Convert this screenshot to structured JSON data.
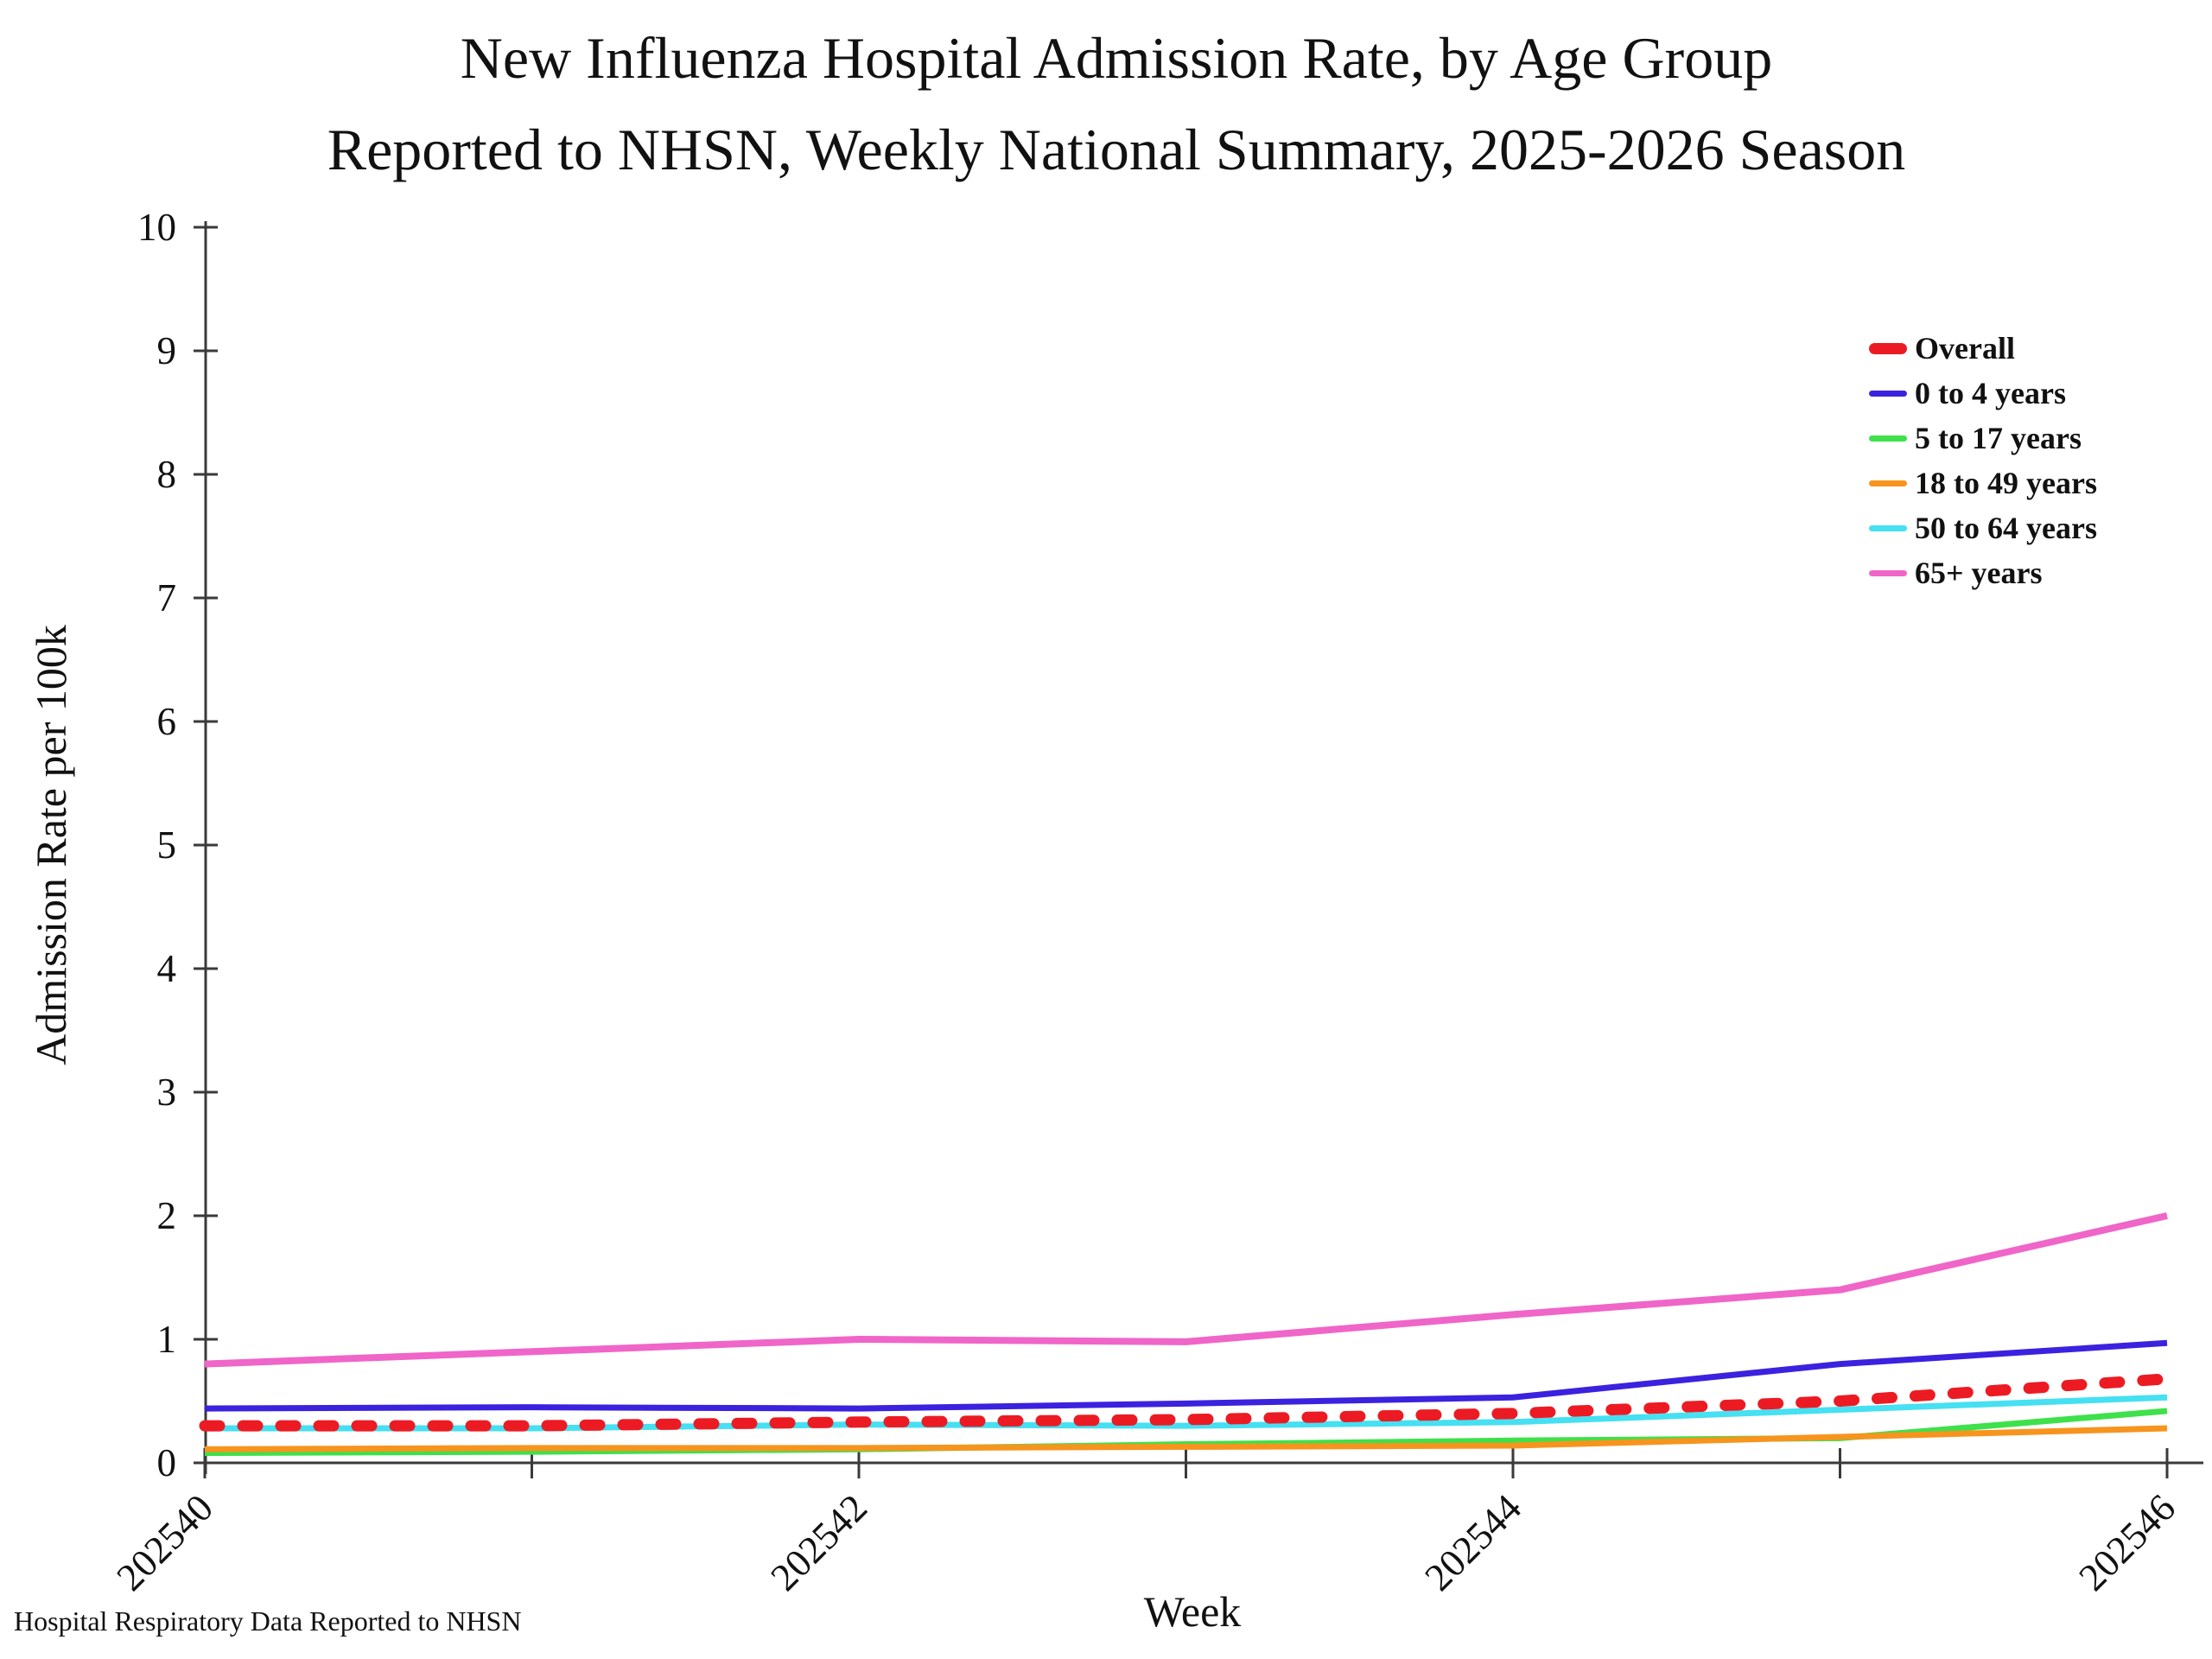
{
  "footer": {
    "text": "Hospital Respiratory Data Reported to NHSN"
  },
  "chart_data": {
    "type": "line",
    "title": "New Influenza Hospital Admission Rate, by Age Group",
    "subtitle": "Reported to NHSN, Weekly National Summary, 2025-2026 Season",
    "xlabel": "Week",
    "ylabel": "Admission Rate per 100k",
    "x": [
      202540,
      202541,
      202542,
      202543,
      202544,
      202545,
      202546
    ],
    "xtick_labeled": [
      202540,
      202542,
      202544,
      202546
    ],
    "ylim": [
      0,
      10
    ],
    "yticks": [
      0,
      1,
      2,
      3,
      4,
      5,
      6,
      7,
      8,
      9,
      10
    ],
    "grid": false,
    "legend_position": "upper right",
    "axis_color": "#3a3a3a",
    "series": [
      {
        "name": "Overall",
        "color": "#ec1b23",
        "style": "dashed",
        "line_width": 13,
        "values": [
          0.3,
          0.3,
          0.33,
          0.35,
          0.4,
          0.5,
          0.68
        ]
      },
      {
        "name": "0 to 4 years",
        "color": "#3b22df",
        "style": "solid",
        "line_width": 7,
        "values": [
          0.44,
          0.45,
          0.44,
          0.48,
          0.53,
          0.8,
          0.97
        ]
      },
      {
        "name": "5 to 17 years",
        "color": "#3ee14b",
        "style": "solid",
        "line_width": 7,
        "values": [
          0.08,
          0.09,
          0.11,
          0.15,
          0.18,
          0.2,
          0.42
        ]
      },
      {
        "name": "18 to 49 years",
        "color": "#f7941e",
        "style": "solid",
        "line_width": 7,
        "values": [
          0.11,
          0.12,
          0.12,
          0.13,
          0.14,
          0.21,
          0.28
        ]
      },
      {
        "name": "50 to 64 years",
        "color": "#45e0f2",
        "style": "solid",
        "line_width": 7,
        "values": [
          0.28,
          0.28,
          0.31,
          0.3,
          0.33,
          0.43,
          0.53
        ]
      },
      {
        "name": "65+ years",
        "color": "#f065c8",
        "style": "solid",
        "line_width": 8,
        "values": [
          0.8,
          0.9,
          1.0,
          0.98,
          1.2,
          1.4,
          2.0
        ]
      }
    ],
    "draw_order": [
      1,
      2,
      3,
      4,
      5,
      0
    ]
  }
}
